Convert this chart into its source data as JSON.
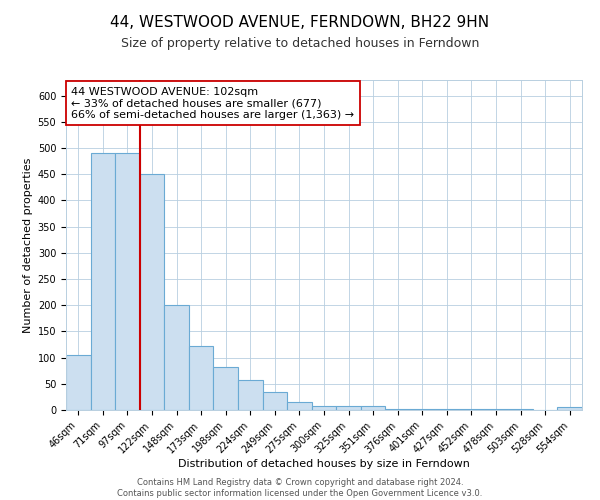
{
  "title": "44, WESTWOOD AVENUE, FERNDOWN, BH22 9HN",
  "subtitle": "Size of property relative to detached houses in Ferndown",
  "xlabel": "Distribution of detached houses by size in Ferndown",
  "ylabel": "Number of detached properties",
  "bar_labels": [
    "46sqm",
    "71sqm",
    "97sqm",
    "122sqm",
    "148sqm",
    "173sqm",
    "198sqm",
    "224sqm",
    "249sqm",
    "275sqm",
    "300sqm",
    "325sqm",
    "351sqm",
    "376sqm",
    "401sqm",
    "427sqm",
    "452sqm",
    "478sqm",
    "503sqm",
    "528sqm",
    "554sqm"
  ],
  "bar_values": [
    105,
    490,
    490,
    450,
    200,
    122,
    83,
    57,
    35,
    15,
    8,
    8,
    8,
    2,
    2,
    2,
    2,
    2,
    2,
    0,
    5
  ],
  "bar_color": "#ccdff0",
  "bar_edge_color": "#6aaad4",
  "vline_x": 2.5,
  "vline_color": "#cc0000",
  "annotation_text": "44 WESTWOOD AVENUE: 102sqm\n← 33% of detached houses are smaller (677)\n66% of semi-detached houses are larger (1,363) →",
  "annotation_box_edge": "#cc0000",
  "annotation_box_face": "#ffffff",
  "ylim": [
    0,
    630
  ],
  "yticks": [
    0,
    50,
    100,
    150,
    200,
    250,
    300,
    350,
    400,
    450,
    500,
    550,
    600
  ],
  "background_color": "#ffffff",
  "grid_color": "#b8cfe0",
  "footer_text": "Contains HM Land Registry data © Crown copyright and database right 2024.\nContains public sector information licensed under the Open Government Licence v3.0.",
  "title_fontsize": 11,
  "subtitle_fontsize": 9,
  "axis_label_fontsize": 8,
  "tick_fontsize": 7,
  "annotation_fontsize": 8,
  "footer_fontsize": 6
}
